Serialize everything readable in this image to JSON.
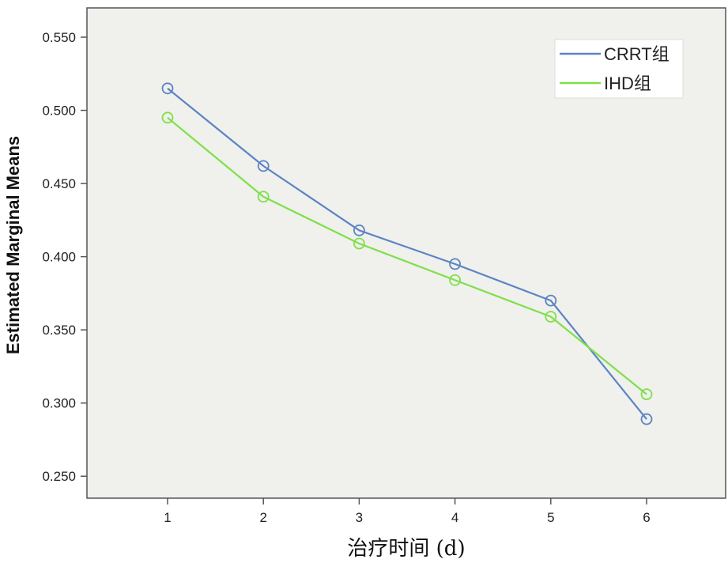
{
  "chart_data": {
    "type": "line",
    "xlabel": "治疗时间 (d)",
    "ylabel": "Estimated Marginal Means",
    "x": [
      1,
      2,
      3,
      4,
      5,
      6
    ],
    "ylim": [
      0.235,
      0.57
    ],
    "yticks": [
      "0.250",
      "0.300",
      "0.350",
      "0.400",
      "0.450",
      "0.500",
      "0.550"
    ],
    "ytick_values": [
      0.25,
      0.3,
      0.35,
      0.4,
      0.45,
      0.5,
      0.55
    ],
    "series": [
      {
        "name": "CRRT组",
        "color": "#5b84c4",
        "values": [
          0.515,
          0.462,
          0.418,
          0.395,
          0.37,
          0.289
        ]
      },
      {
        "name": "IHD组",
        "color": "#7ee04a",
        "values": [
          0.495,
          0.441,
          0.409,
          0.384,
          0.359,
          0.306
        ]
      }
    ],
    "legend_position": "top-right",
    "grid": false,
    "plot_background": "#f0f0ec"
  }
}
